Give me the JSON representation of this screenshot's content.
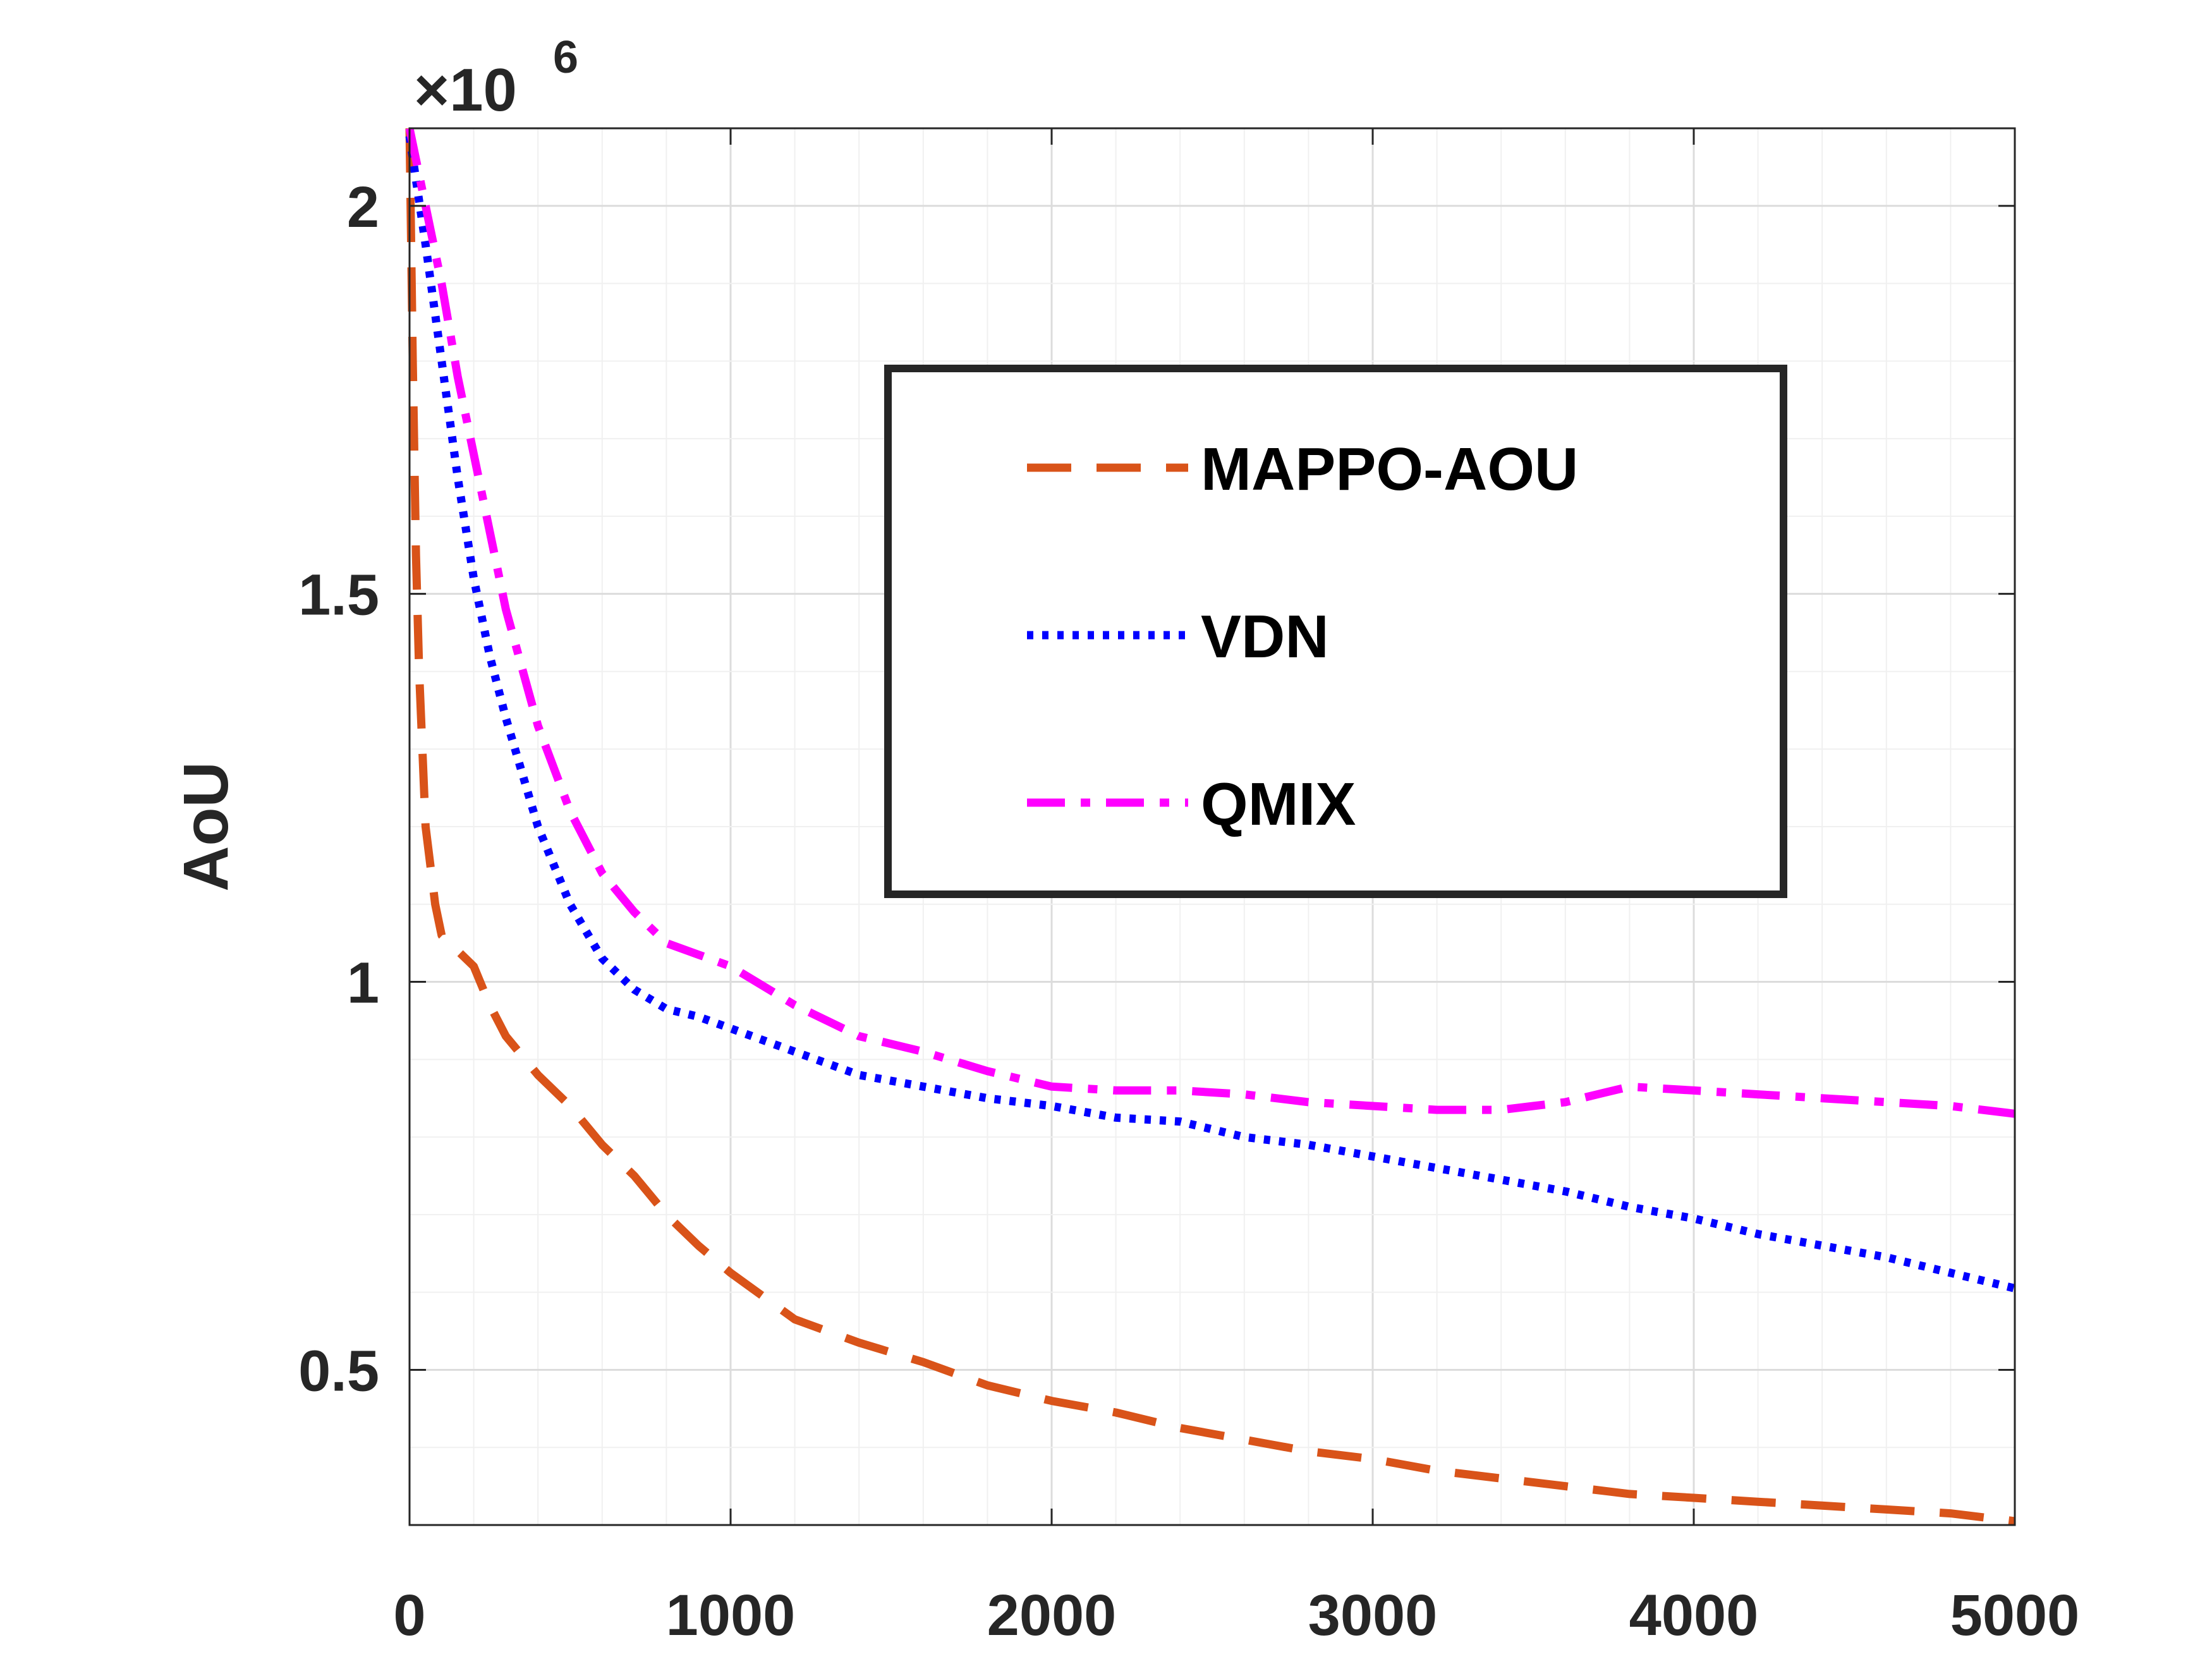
{
  "chart_data": {
    "type": "line",
    "title": "",
    "xlabel": "",
    "ylabel": "AoU",
    "y_exponent_label": "×10",
    "y_exponent_power": "6",
    "y_scale": 1000000,
    "xlim": [
      0,
      5000
    ],
    "ylim": [
      0.3,
      2.1
    ],
    "x_ticks": [
      0,
      1000,
      2000,
      3000,
      4000,
      5000
    ],
    "x_tick_labels": [
      "0",
      "1000",
      "2000",
      "3000",
      "4000",
      "5000"
    ],
    "y_ticks": [
      0.5,
      1,
      1.5,
      2
    ],
    "y_tick_labels": [
      "0.5",
      "1",
      "1.5",
      "2"
    ],
    "grid": true,
    "legend_position": "upper-right",
    "series": [
      {
        "name": "MAPPO-AOU",
        "color": "#D95319",
        "style": "dashed",
        "x": [
          0,
          10,
          20,
          30,
          50,
          80,
          100,
          150,
          200,
          250,
          300,
          400,
          500,
          600,
          700,
          800,
          900,
          1000,
          1200,
          1400,
          1600,
          1800,
          2000,
          2200,
          2400,
          2600,
          2800,
          3000,
          3200,
          3400,
          3600,
          3800,
          4000,
          4200,
          4400,
          4600,
          4800,
          5000
        ],
        "y": [
          2.1,
          1.8,
          1.55,
          1.4,
          1.2,
          1.1,
          1.06,
          1.04,
          1.02,
          0.97,
          0.93,
          0.88,
          0.84,
          0.79,
          0.75,
          0.7,
          0.66,
          0.625,
          0.565,
          0.535,
          0.51,
          0.48,
          0.46,
          0.445,
          0.425,
          0.41,
          0.395,
          0.385,
          0.37,
          0.36,
          0.35,
          0.34,
          0.335,
          0.33,
          0.325,
          0.32,
          0.315,
          0.305
        ]
      },
      {
        "name": "VDN",
        "color": "#0000FF",
        "style": "dotted",
        "x": [
          0,
          50,
          100,
          150,
          200,
          250,
          300,
          400,
          500,
          600,
          700,
          800,
          900,
          1000,
          1200,
          1400,
          1600,
          1800,
          2000,
          2200,
          2400,
          2600,
          2800,
          3000,
          3200,
          3400,
          3600,
          3800,
          4000,
          4200,
          4400,
          4600,
          4800,
          5000
        ],
        "y": [
          2.09,
          1.95,
          1.8,
          1.65,
          1.52,
          1.42,
          1.34,
          1.2,
          1.1,
          1.03,
          0.99,
          0.965,
          0.955,
          0.94,
          0.91,
          0.88,
          0.865,
          0.85,
          0.84,
          0.825,
          0.82,
          0.8,
          0.79,
          0.775,
          0.76,
          0.745,
          0.73,
          0.71,
          0.695,
          0.675,
          0.66,
          0.645,
          0.625,
          0.605
        ]
      },
      {
        "name": "QMIX",
        "color": "#FF00FF",
        "style": "dashdot",
        "x": [
          0,
          50,
          100,
          150,
          200,
          250,
          300,
          400,
          500,
          600,
          700,
          800,
          900,
          1000,
          1200,
          1400,
          1600,
          1800,
          2000,
          2200,
          2400,
          2600,
          2800,
          3000,
          3200,
          3400,
          3500,
          3600,
          3700,
          3800,
          4000,
          4200,
          4400,
          4600,
          4800,
          5000
        ],
        "y": [
          2.1,
          2.0,
          1.9,
          1.78,
          1.68,
          1.58,
          1.48,
          1.33,
          1.22,
          1.14,
          1.09,
          1.05,
          1.035,
          1.02,
          0.97,
          0.93,
          0.91,
          0.885,
          0.865,
          0.86,
          0.86,
          0.855,
          0.845,
          0.84,
          0.835,
          0.835,
          0.84,
          0.845,
          0.855,
          0.865,
          0.86,
          0.855,
          0.85,
          0.845,
          0.84,
          0.83
        ]
      }
    ]
  }
}
